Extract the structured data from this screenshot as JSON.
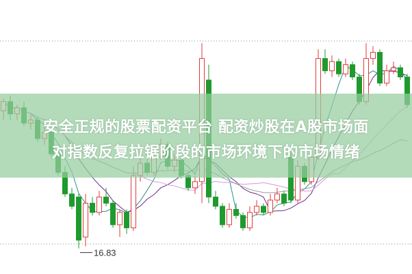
{
  "overlay": {
    "line1": "安全正规的股票配资平台 配资炒股在A股市场面",
    "line2": "对指数反复拉锯阶段的市场环境下的市场情绪"
  },
  "chart_data": {
    "type": "candlestick",
    "title": "",
    "grid": "dotted horizontal",
    "colors": {
      "up": "#e03a3a",
      "down": "#1f9a2e",
      "ma_short": "#2a8f8a",
      "ma_mid": "#6a2c8a",
      "ma_long": "#d49ad6",
      "ma_longest": "#9a9a9a"
    },
    "low_label": "16.83",
    "ylim": [
      16.0,
      24.9
    ],
    "candles": [
      [
        21.3,
        21.7,
        21.0,
        21.6
      ],
      [
        21.6,
        21.8,
        21.0,
        21.2
      ],
      [
        21.2,
        21.5,
        21.0,
        21.4
      ],
      [
        21.4,
        21.6,
        20.8,
        20.9
      ],
      [
        20.9,
        21.2,
        20.7,
        21.0
      ],
      [
        21.0,
        21.1,
        20.3,
        20.4
      ],
      [
        20.4,
        20.8,
        20.2,
        20.6
      ],
      [
        20.6,
        20.7,
        19.8,
        19.9
      ],
      [
        19.9,
        20.0,
        19.2,
        19.3
      ],
      [
        19.3,
        19.5,
        18.5,
        18.6
      ],
      [
        18.6,
        18.8,
        18.1,
        18.2
      ],
      [
        18.5,
        18.6,
        16.83,
        17.1
      ],
      [
        17.2,
        18.6,
        16.9,
        18.3
      ],
      [
        18.3,
        18.5,
        17.9,
        18.0
      ],
      [
        18.0,
        18.7,
        17.9,
        18.5
      ],
      [
        18.5,
        18.8,
        18.2,
        18.3
      ],
      [
        18.3,
        18.4,
        17.5,
        17.6
      ],
      [
        17.6,
        18.1,
        17.2,
        18.0
      ],
      [
        18.0,
        18.1,
        17.3,
        17.5
      ],
      [
        17.5,
        19.5,
        17.4,
        19.2
      ],
      [
        19.2,
        19.8,
        19.0,
        19.6
      ],
      [
        19.6,
        19.9,
        19.2,
        19.3
      ],
      [
        19.3,
        20.0,
        19.2,
        19.8
      ],
      [
        19.8,
        20.4,
        19.7,
        20.2
      ],
      [
        20.2,
        20.3,
        19.4,
        19.5
      ],
      [
        19.5,
        19.9,
        19.3,
        19.7
      ],
      [
        19.7,
        19.8,
        19.1,
        19.2
      ],
      [
        19.2,
        19.3,
        18.7,
        18.8
      ],
      [
        18.8,
        19.2,
        18.6,
        19.0
      ],
      [
        19.0,
        23.5,
        18.3,
        23.0
      ],
      [
        22.3,
        22.8,
        18.3,
        18.5
      ],
      [
        18.5,
        18.7,
        18.1,
        18.2
      ],
      [
        18.2,
        18.3,
        17.5,
        17.6
      ],
      [
        17.6,
        18.3,
        17.5,
        18.1
      ],
      [
        18.1,
        18.3,
        17.8,
        17.9
      ],
      [
        17.9,
        18.0,
        17.4,
        17.5
      ],
      [
        17.5,
        18.2,
        17.4,
        18.0
      ],
      [
        18.0,
        18.4,
        17.9,
        18.2
      ],
      [
        18.2,
        18.3,
        17.9,
        18.0
      ],
      [
        18.0,
        18.6,
        17.9,
        18.4
      ],
      [
        18.4,
        18.8,
        18.3,
        18.6
      ],
      [
        18.6,
        18.7,
        18.2,
        18.3
      ],
      [
        19.8,
        20.0,
        18.3,
        18.4
      ],
      [
        18.4,
        19.7,
        18.3,
        19.5
      ],
      [
        19.5,
        19.6,
        18.9,
        19.0
      ],
      [
        19.0,
        20.0,
        18.9,
        19.8
      ],
      [
        19.8,
        23.3,
        19.7,
        23.0
      ],
      [
        23.0,
        23.3,
        22.5,
        22.6
      ],
      [
        22.6,
        23.1,
        22.4,
        22.9
      ],
      [
        22.9,
        23.0,
        22.4,
        22.5
      ],
      [
        22.5,
        23.0,
        22.4,
        22.8
      ],
      [
        22.8,
        22.9,
        22.3,
        22.4
      ],
      [
        22.4,
        22.5,
        21.5,
        21.6
      ],
      [
        21.6,
        23.5,
        21.5,
        23.0
      ],
      [
        23.0,
        23.4,
        22.8,
        23.2
      ],
      [
        23.2,
        23.3,
        22.1,
        22.2
      ],
      [
        22.2,
        22.8,
        22.1,
        22.6
      ],
      [
        22.6,
        22.9,
        22.5,
        22.7
      ],
      [
        22.7,
        22.8,
        22.3,
        22.4
      ],
      [
        22.4,
        22.5,
        21.4,
        21.5
      ]
    ]
  }
}
